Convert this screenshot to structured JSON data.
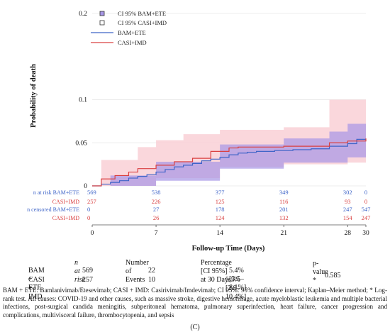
{
  "chart_data": {
    "type": "line",
    "title": "",
    "xlabel": "Follow-up Time (Days)",
    "ylabel": "Probability of death",
    "xlim": [
      0,
      30
    ],
    "ylim": [
      0,
      0.2
    ],
    "xticks": [
      0,
      7,
      14,
      21,
      28,
      30
    ],
    "yticks": [
      0.2,
      0.1,
      0.05,
      0
    ],
    "ytick_labels": [
      "0.2",
      "0.1",
      "0.05",
      "0"
    ],
    "legend": {
      "position": "top-left",
      "entries": [
        "CI 95% BAM+ETE",
        "CI 95% CASI+IMD",
        "BAM+ETE",
        "CASI+IMD"
      ]
    },
    "colors": {
      "bam": "#3e64c8",
      "bam_ci": "#a796e6",
      "casi": "#d94040",
      "casi_ci": "#f9d0d6"
    },
    "series": [
      {
        "name": "BAM+ETE",
        "steps": [
          [
            0,
            0
          ],
          [
            1.0,
            0.002
          ],
          [
            2.0,
            0.004
          ],
          [
            3.0,
            0.006
          ],
          [
            4.0,
            0.009
          ],
          [
            5.0,
            0.011
          ],
          [
            6.0,
            0.013
          ],
          [
            7.0,
            0.016
          ],
          [
            8.0,
            0.019
          ],
          [
            9.0,
            0.022
          ],
          [
            10.0,
            0.024
          ],
          [
            11.0,
            0.026
          ],
          [
            12.0,
            0.029
          ],
          [
            13.0,
            0.031
          ],
          [
            14.0,
            0.033
          ],
          [
            15.0,
            0.036
          ],
          [
            16.0,
            0.038
          ],
          [
            17.0,
            0.039
          ],
          [
            18.0,
            0.04
          ],
          [
            20.0,
            0.041
          ],
          [
            22.0,
            0.042
          ],
          [
            24.0,
            0.043
          ],
          [
            26.0,
            0.046
          ],
          [
            28.0,
            0.049
          ],
          [
            29.0,
            0.054
          ],
          [
            30.0,
            0.054
          ]
        ],
        "ci_lower": [
          [
            0,
            0
          ],
          [
            7,
            0.006
          ],
          [
            14,
            0.02
          ],
          [
            21,
            0.027
          ],
          [
            28,
            0.033
          ],
          [
            30,
            0.036
          ]
        ],
        "ci_upper": [
          [
            0,
            0
          ],
          [
            2,
            0.012
          ],
          [
            7,
            0.028
          ],
          [
            14,
            0.048
          ],
          [
            21,
            0.055
          ],
          [
            26,
            0.063
          ],
          [
            28,
            0.072
          ],
          [
            30,
            0.08
          ]
        ]
      },
      {
        "name": "CASI+IMD",
        "steps": [
          [
            0,
            0
          ],
          [
            1.0,
            0.008
          ],
          [
            2.5,
            0.012
          ],
          [
            4.0,
            0.016
          ],
          [
            5.0,
            0.02
          ],
          [
            7.0,
            0.024
          ],
          [
            9.0,
            0.028
          ],
          [
            11.0,
            0.032
          ],
          [
            13.0,
            0.04
          ],
          [
            15.0,
            0.044
          ],
          [
            16.0,
            0.045
          ],
          [
            21.0,
            0.046
          ],
          [
            26.0,
            0.05
          ],
          [
            28.0,
            0.052
          ],
          [
            30.0,
            0.055
          ]
        ],
        "ci_lower": [
          [
            0,
            0
          ],
          [
            7,
            0.009
          ],
          [
            14,
            0.022
          ],
          [
            21,
            0.025
          ],
          [
            28,
            0.027
          ],
          [
            30,
            0.029
          ]
        ],
        "ci_upper": [
          [
            0,
            0
          ],
          [
            1,
            0.03
          ],
          [
            5,
            0.045
          ],
          [
            7,
            0.053
          ],
          [
            10,
            0.06
          ],
          [
            14,
            0.065
          ],
          [
            21,
            0.068
          ],
          [
            26,
            0.1
          ],
          [
            30,
            0.104
          ]
        ]
      }
    ],
    "risk_table": {
      "rows": [
        {
          "label": "n at risk BAM+ETE",
          "values": [
            "569",
            "538",
            "377",
            "349",
            "302",
            "0"
          ],
          "color": "bam"
        },
        {
          "label": "CASI+IMD",
          "values": [
            "257",
            "226",
            "125",
            "116",
            "93",
            "0"
          ],
          "color": "casi"
        },
        {
          "label": "n censored BAM+ETE",
          "values": [
            "0",
            "27",
            "178",
            "201",
            "247",
            "547"
          ],
          "color": "bam"
        },
        {
          "label": "CASI+IMD",
          "values": [
            "0",
            "26",
            "124",
            "132",
            "154",
            "247"
          ],
          "color": "casi"
        }
      ]
    }
  },
  "summary_table": {
    "headers": [
      "n at risk",
      "Number of Events",
      "Percentage [CI 95%] at 30 Days",
      "p-value *"
    ],
    "rows": [
      {
        "group": "BAM + ETE",
        "n_at_risk": "569",
        "events": "22",
        "percentage": "5.4% [3.5–8.1%]"
      },
      {
        "group": "CASI + IMD",
        "n_at_risk": "257",
        "events": "10",
        "percentage": "5.5% [2.9–10.4%]"
      }
    ],
    "p_value": "0.585"
  },
  "footnote": "BAM + ETE: Bamlanivimab/Etesevimab; CASI + IMD: Casirivimab/Imdevimab; CI 95%: 95% confidence interval; Kaplan–Meier method; * Log-rank test. All causes: COVID-19 and other causes, such as massive stroke, digestive hemorrhage, acute myeloblastic leukemia and multiple bacterial infections, post-surgical candida meningitis, subperitoneal hematoma, pulmonary superinfection, heart failure, cancer progression and complications, multivisceral failure, thrombocytopenia, and sepsis",
  "caption": "(C)"
}
